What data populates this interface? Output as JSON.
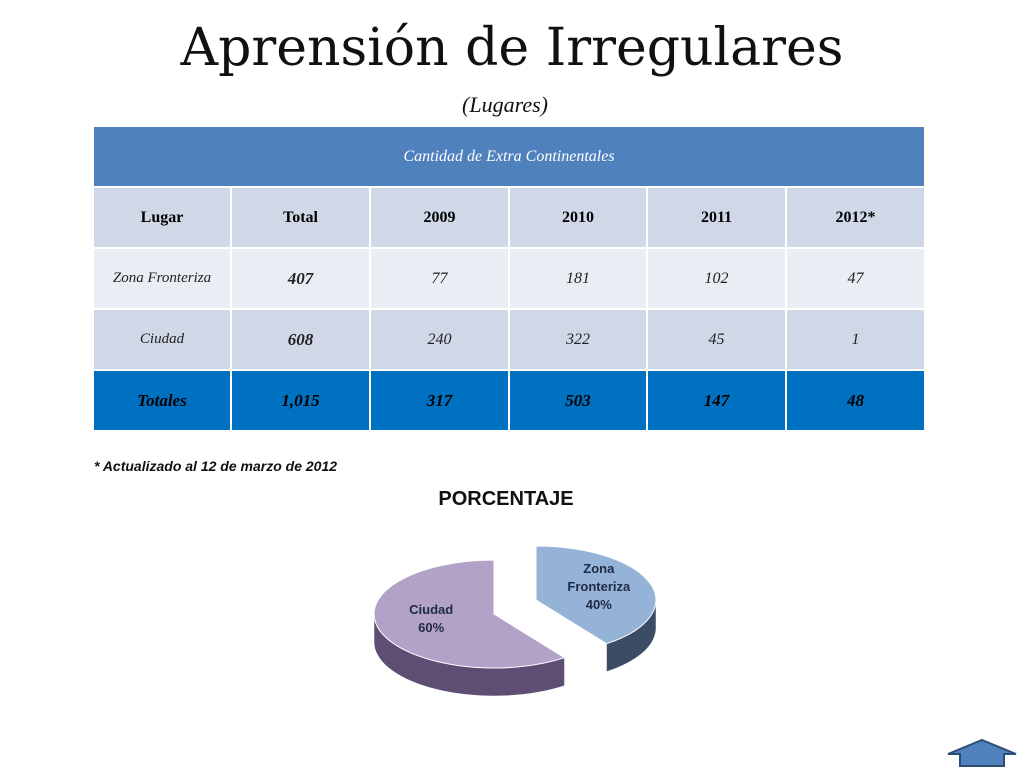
{
  "title": "Aprensión de Irregulares",
  "subtitle": "(Lugares)",
  "table": {
    "caption": "Cantidad  de Extra Continentales",
    "columns": [
      "Lugar",
      "Total",
      "2009",
      "2010",
      "2011",
      "2012*"
    ],
    "rows": [
      [
        "Zona Fronteriza",
        "407",
        "77",
        "181",
        "102",
        "47"
      ],
      [
        "Ciudad",
        "608",
        "240",
        "322",
        "45",
        "1"
      ],
      [
        "Totales",
        "1,015",
        "317",
        "503",
        "147",
        "48"
      ]
    ]
  },
  "note": "*  Actualizado al 12 de marzo de 2012",
  "chart_data": {
    "type": "pie",
    "title": "PORCENTAJE",
    "slices": [
      {
        "label": "Zona Fronteriza",
        "label_lines": [
          "Zona",
          "Fronteriza"
        ],
        "pct_label": "40%",
        "value": 40,
        "color": "#95b3d7",
        "side_color": "#3c4c64"
      },
      {
        "label": "Ciudad",
        "label_lines": [
          "Ciudad"
        ],
        "pct_label": "60%",
        "value": 60,
        "color": "#b3a2c7",
        "side_color": "#5e4e74"
      }
    ]
  },
  "nav": {
    "icon": "up-arrow-icon",
    "color": "#4f81bd"
  }
}
